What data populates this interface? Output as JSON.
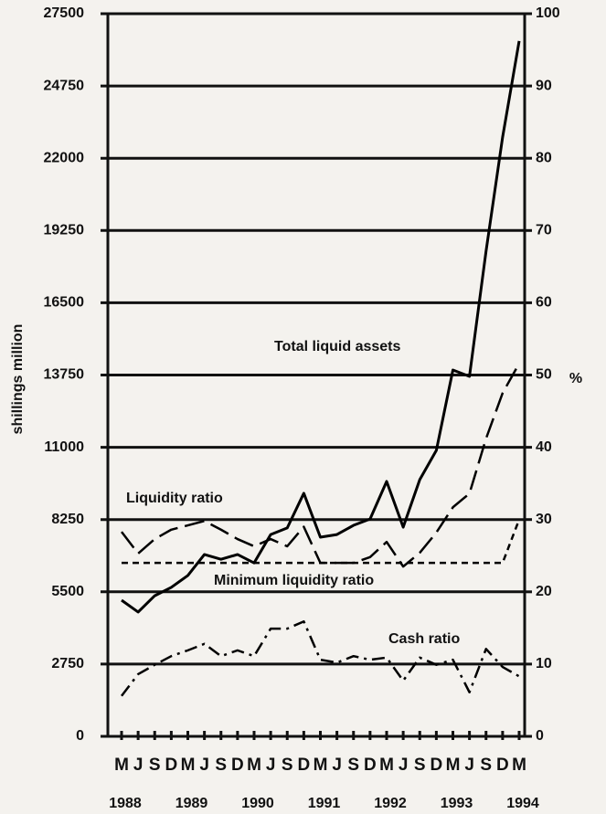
{
  "chart_data": {
    "type": "line",
    "categories": [
      "M",
      "J",
      "S",
      "D",
      "M",
      "J",
      "S",
      "D",
      "M",
      "J",
      "S",
      "D",
      "M",
      "J",
      "S",
      "D",
      "M",
      "J",
      "S",
      "D",
      "M",
      "J",
      "S",
      "D",
      "M"
    ],
    "years": [
      "1988",
      "1989",
      "1990",
      "1991",
      "1992",
      "1993",
      "1994"
    ],
    "ylabel": "shillings million",
    "y2label": "%",
    "ylim": [
      0,
      27500
    ],
    "yticks": [
      0,
      2750,
      5500,
      8250,
      11000,
      13750,
      16500,
      19250,
      22000,
      24750,
      27500
    ],
    "y2lim": [
      0,
      100
    ],
    "y2ticks": [
      0,
      10,
      20,
      30,
      40,
      50,
      60,
      70,
      80,
      90,
      100
    ],
    "grid": true,
    "series": [
      {
        "name": "Total liquid assets",
        "color": "#000000",
        "style": "solid",
        "values": [
          5180,
          4730,
          5350,
          5670,
          6120,
          6920,
          6740,
          6920,
          6600,
          7680,
          7930,
          9250,
          7580,
          7680,
          8030,
          8270,
          9700,
          7960,
          9770,
          10880,
          13940,
          13700,
          18460,
          22800,
          26460
        ]
      },
      {
        "name": "Liquidity ratio",
        "color": "#000000",
        "style": "dashed",
        "axis": "y2",
        "values": [
          28.3,
          25.3,
          27.3,
          28.6,
          29.2,
          29.8,
          28.6,
          27.3,
          26.3,
          27.3,
          26.3,
          29.0,
          24.0,
          24.0,
          24.0,
          24.8,
          26.9,
          23.5,
          25.4,
          28.2,
          31.7,
          33.6,
          41.2,
          47.5,
          51.6
        ]
      },
      {
        "name": "Minimum liquidity ratio",
        "color": "#000000",
        "style": "short-dashed",
        "axis": "y2",
        "values": [
          24,
          24,
          24,
          24,
          24,
          24,
          24,
          24,
          24,
          24,
          24,
          24,
          24,
          24,
          24,
          24,
          24,
          24,
          24,
          24,
          24,
          24,
          24,
          24,
          30
        ]
      },
      {
        "name": "Cash ratio",
        "color": "#000000",
        "style": "dash-dot",
        "axis": "y2",
        "values": [
          5.6,
          8.6,
          9.9,
          11.1,
          11.9,
          12.8,
          11.1,
          11.9,
          11.1,
          14.9,
          14.9,
          15.9,
          10.6,
          10.2,
          11.1,
          10.6,
          10.9,
          7.7,
          10.9,
          9.9,
          10.6,
          6.1,
          12.1,
          9.6,
          8.3
        ]
      }
    ]
  }
}
